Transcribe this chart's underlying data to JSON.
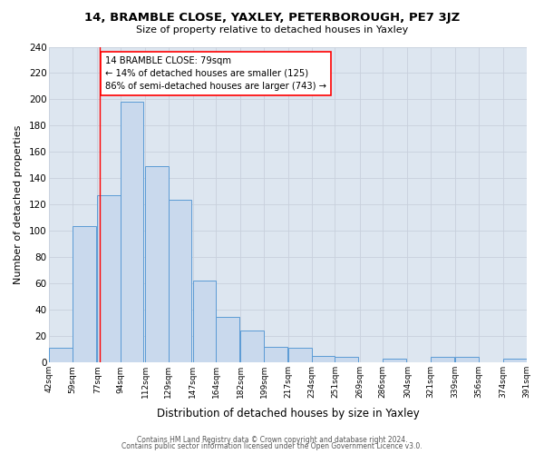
{
  "title": "14, BRAMBLE CLOSE, YAXLEY, PETERBOROUGH, PE7 3JZ",
  "subtitle": "Size of property relative to detached houses in Yaxley",
  "xlabel": "Distribution of detached houses by size in Yaxley",
  "ylabel": "Number of detached properties",
  "footer_line1": "Contains HM Land Registry data © Crown copyright and database right 2024.",
  "footer_line2": "Contains public sector information licensed under the Open Government Licence v3.0.",
  "bin_edges": [
    42,
    59,
    77,
    94,
    112,
    129,
    147,
    164,
    182,
    199,
    217,
    234,
    251,
    269,
    286,
    304,
    321,
    339,
    356,
    374,
    391
  ],
  "bin_labels": [
    "42sqm",
    "59sqm",
    "77sqm",
    "94sqm",
    "112sqm",
    "129sqm",
    "147sqm",
    "164sqm",
    "182sqm",
    "199sqm",
    "217sqm",
    "234sqm",
    "251sqm",
    "269sqm",
    "286sqm",
    "304sqm",
    "321sqm",
    "339sqm",
    "356sqm",
    "374sqm",
    "391sqm"
  ],
  "counts": [
    11,
    104,
    127,
    198,
    149,
    124,
    62,
    35,
    24,
    12,
    11,
    5,
    4,
    0,
    3,
    0,
    4,
    4,
    0,
    3
  ],
  "bar_facecolor": "#c9d9ed",
  "bar_edgecolor": "#5b9bd5",
  "vline_x": 79,
  "vline_color": "red",
  "annotation_text": "14 BRAMBLE CLOSE: 79sqm\n← 14% of detached houses are smaller (125)\n86% of semi-detached houses are larger (743) →",
  "annotation_box_facecolor": "white",
  "annotation_box_edgecolor": "red",
  "ylim": [
    0,
    240
  ],
  "yticks": [
    0,
    20,
    40,
    60,
    80,
    100,
    120,
    140,
    160,
    180,
    200,
    220,
    240
  ],
  "grid_color": "#c8d0dc",
  "plot_bg_color": "#dde6f0",
  "fig_bg_color": "#ffffff"
}
